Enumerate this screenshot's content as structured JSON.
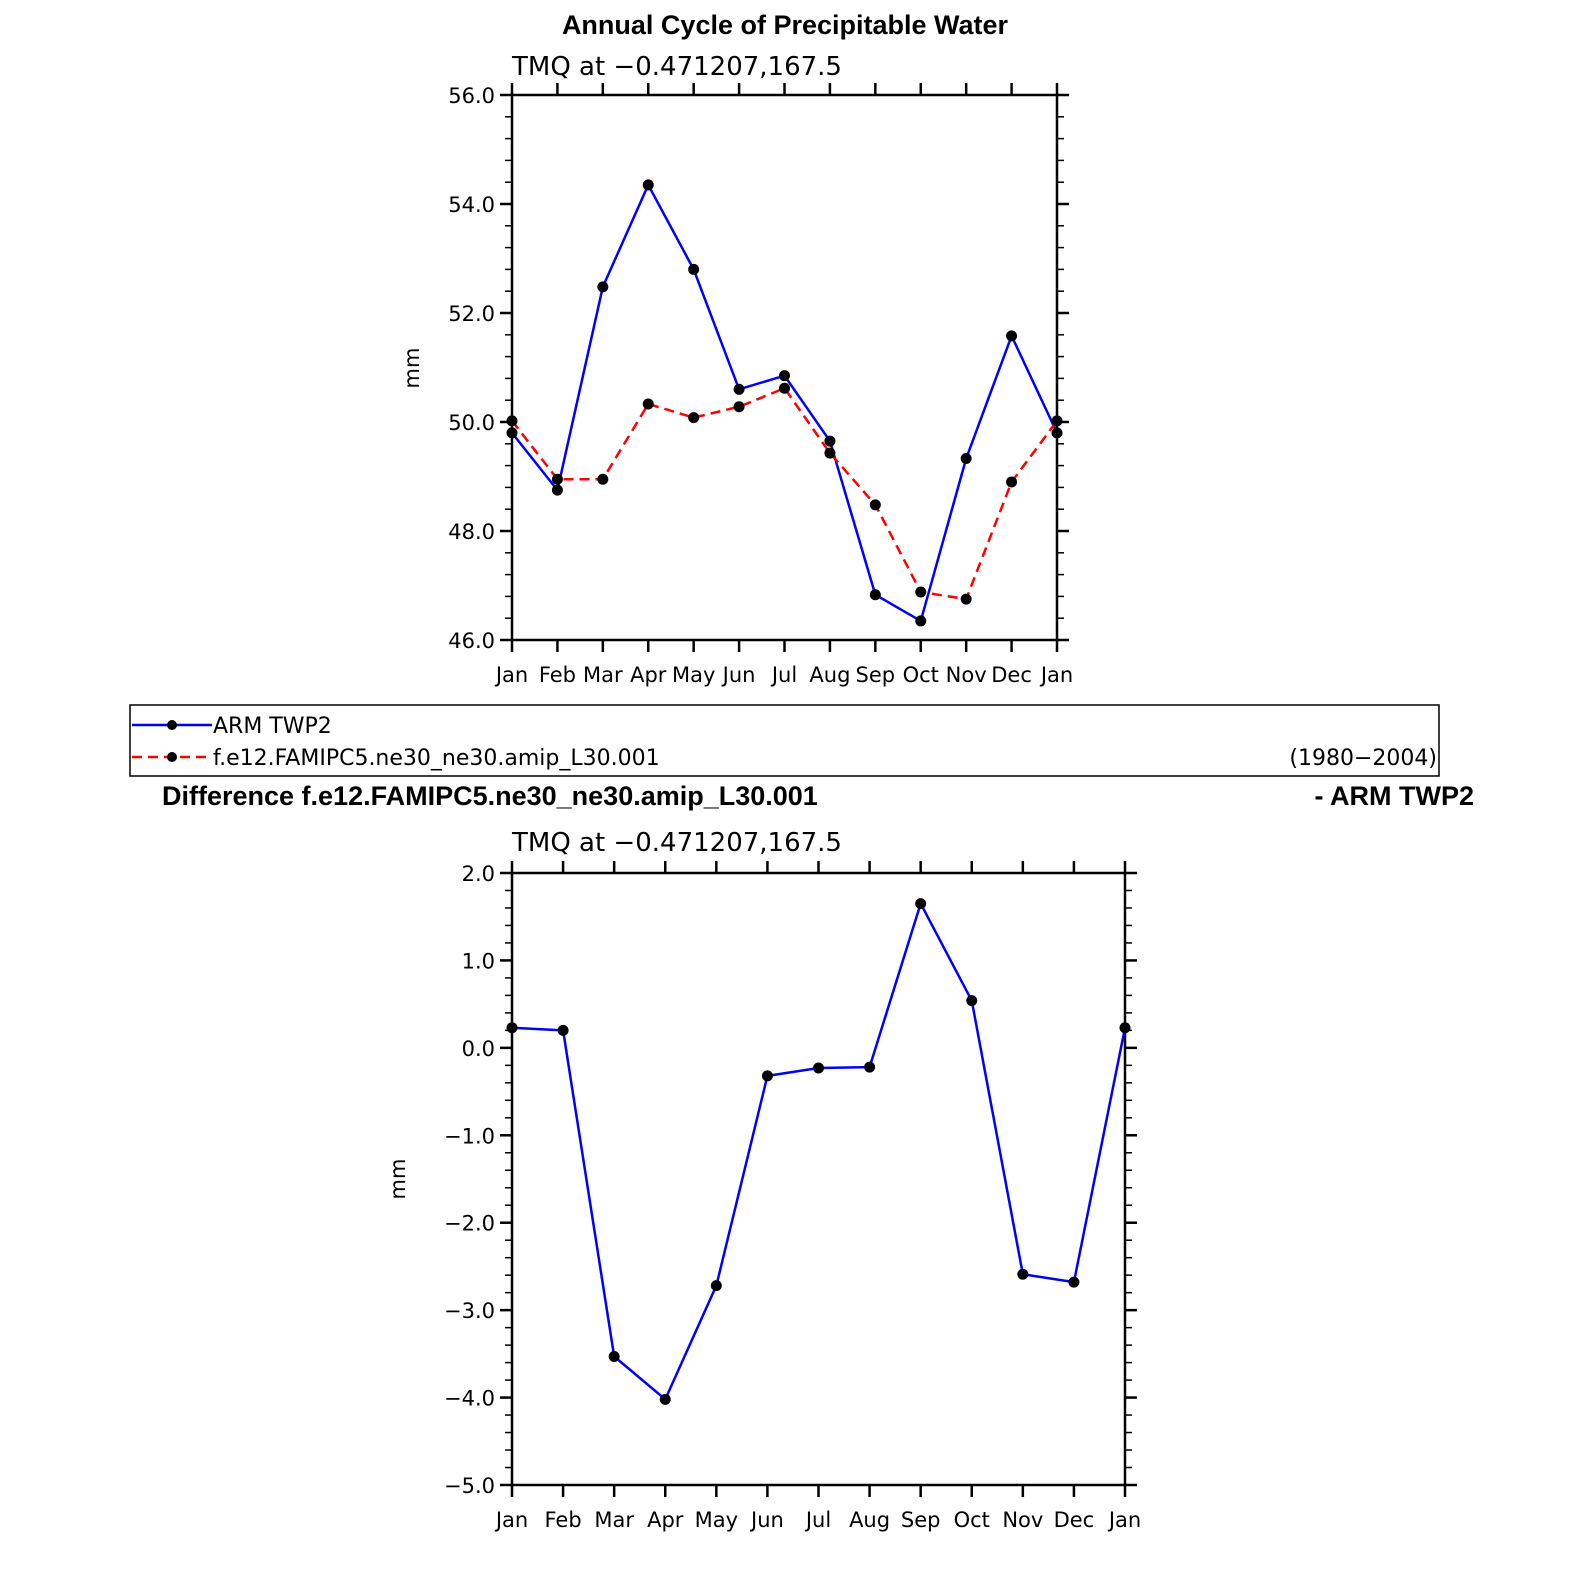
{
  "chart_data": [
    {
      "type": "line",
      "title": "Annual Cycle of Precipitable Water",
      "subtitle": "TMQ at −0.471207,167.5",
      "ylabel": "mm",
      "ylim": [
        46.0,
        56.0
      ],
      "yticks": [
        "46.0",
        "48.0",
        "50.0",
        "52.0",
        "54.0",
        "56.0"
      ],
      "categories": [
        "Jan",
        "Feb",
        "Mar",
        "Apr",
        "May",
        "Jun",
        "Jul",
        "Aug",
        "Sep",
        "Oct",
        "Nov",
        "Dec",
        "Jan"
      ],
      "grid": false,
      "series": [
        {
          "name": "ARM TWP2",
          "color": "#0000ff",
          "dash": "solid",
          "values": [
            49.8,
            48.75,
            52.48,
            54.35,
            52.8,
            50.6,
            50.85,
            49.65,
            46.83,
            46.35,
            49.33,
            51.58,
            49.8
          ]
        },
        {
          "name": "f.e12.FAMIPC5.ne30_ne30.amip_L30.001",
          "color": "#ff0000",
          "dash": "dashed",
          "values": [
            50.02,
            48.95,
            48.95,
            50.33,
            50.08,
            50.28,
            50.62,
            49.43,
            48.48,
            46.88,
            46.75,
            48.9,
            50.02
          ]
        }
      ]
    },
    {
      "type": "line",
      "title_left": "Difference f.e12.FAMIPC5.ne30_ne30.amip_L30.001",
      "title_right": "- ARM TWP2",
      "subtitle": "TMQ at −0.471207,167.5",
      "ylabel": "mm",
      "ylim": [
        -5.0,
        2.0
      ],
      "yticks": [
        "−5.0",
        "−4.0",
        "−3.0",
        "−2.0",
        "−1.0",
        "0.0",
        "1.0",
        "2.0"
      ],
      "categories": [
        "Jan",
        "Feb",
        "Mar",
        "Apr",
        "May",
        "Jun",
        "Jul",
        "Aug",
        "Sep",
        "Oct",
        "Nov",
        "Dec",
        "Jan"
      ],
      "grid": false,
      "series": [
        {
          "color": "#0000ff",
          "dash": "solid",
          "values": [
            0.23,
            0.2,
            -3.53,
            -4.02,
            -2.72,
            -0.32,
            -0.23,
            -0.22,
            1.65,
            0.54,
            -2.59,
            -2.68,
            0.23
          ]
        }
      ]
    }
  ],
  "legend": {
    "items": [
      "ARM TWP2",
      "f.e12.FAMIPC5.ne30_ne30.amip_L30.001"
    ],
    "period": "(1980−2004)"
  }
}
